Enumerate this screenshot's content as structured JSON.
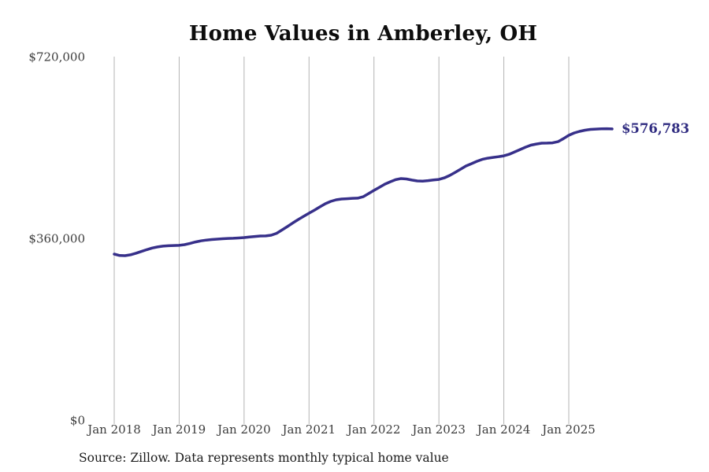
{
  "title": "Home Values in Amberley, OH",
  "source_note": "Source: Zillow. Data represents monthly typical home value",
  "endpoint_label": "$576,783",
  "colors": {
    "line": "#37308a",
    "endpoint_label": "#2f2b80",
    "gridline": "#b3b3b3",
    "tick_label": "#3d3d3d",
    "title": "#0d0d0d",
    "source": "#1a1a1a",
    "background": "#ffffff"
  },
  "chart_data": {
    "type": "line",
    "title": "Home Values in Amberley, OH",
    "xlabel": "",
    "ylabel": "",
    "ylim": [
      0,
      720000
    ],
    "y_ticks": [
      0,
      360000,
      720000
    ],
    "y_tick_labels": [
      "$0",
      "$360,000",
      "$720,000"
    ],
    "x_tick_labels": [
      "Jan 2018",
      "Jan 2019",
      "Jan 2020",
      "Jan 2021",
      "Jan 2022",
      "Jan 2023",
      "Jan 2024",
      "Jan 2025"
    ],
    "grid": "vertical-only",
    "legend": false,
    "frequency": "monthly",
    "start_month": "2018-01",
    "end_month": "2025-09",
    "final_value": 576783,
    "series": [
      {
        "name": "Typical home value",
        "values": [
          328800,
          326000,
          325700,
          327500,
          330500,
          334000,
          337500,
          340800,
          343000,
          344500,
          345300,
          345800,
          346200,
          347500,
          350000,
          352800,
          355000,
          356500,
          357600,
          358400,
          359200,
          359800,
          360200,
          360800,
          361500,
          362800,
          363800,
          364600,
          364800,
          366200,
          370000,
          376500,
          383300,
          390500,
          397300,
          403600,
          409800,
          416000,
          422300,
          428500,
          433200,
          436300,
          437900,
          438600,
          439400,
          439700,
          442500,
          448700,
          455000,
          461200,
          467400,
          472100,
          476300,
          478400,
          477600,
          475500,
          473700,
          473500,
          474400,
          475600,
          476800,
          479900,
          484600,
          490800,
          497000,
          503300,
          507900,
          512600,
          516500,
          518800,
          520400,
          521800,
          523500,
          526600,
          531300,
          536000,
          540700,
          544600,
          546900,
          548500,
          548800,
          549200,
          551600,
          557500,
          564200,
          568800,
          571900,
          574300,
          575800,
          576400,
          576900,
          577200,
          576783
        ]
      }
    ]
  }
}
